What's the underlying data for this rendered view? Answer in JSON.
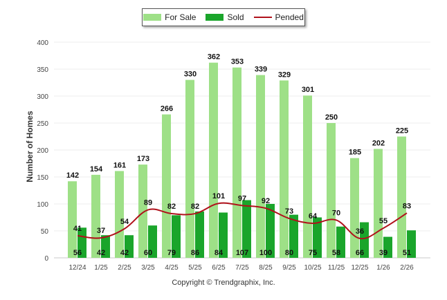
{
  "chart_data": {
    "type": "bar",
    "title": "",
    "xlabel": "",
    "ylabel": "Number of Homes",
    "ylim": [
      0,
      400
    ],
    "yticks": [
      0,
      50,
      100,
      150,
      200,
      250,
      300,
      350,
      400
    ],
    "categories": [
      "12/24",
      "1/25",
      "2/25",
      "3/25",
      "4/25",
      "5/25",
      "6/25",
      "7/25",
      "8/25",
      "9/25",
      "10/25",
      "11/25",
      "12/25",
      "1/26",
      "2/26"
    ],
    "series": [
      {
        "name": "For Sale",
        "kind": "bar",
        "color": "#9ee087",
        "values": [
          142,
          154,
          161,
          173,
          266,
          330,
          362,
          353,
          339,
          329,
          301,
          250,
          185,
          202,
          225
        ]
      },
      {
        "name": "Sold",
        "kind": "bar",
        "color": "#1aa52b",
        "values": [
          56,
          42,
          42,
          60,
          79,
          86,
          84,
          107,
          100,
          80,
          75,
          58,
          66,
          39,
          51
        ]
      },
      {
        "name": "Pended",
        "kind": "line",
        "color": "#b0111b",
        "values": [
          41,
          37,
          54,
          89,
          82,
          82,
          101,
          97,
          92,
          73,
          64,
          70,
          36,
          55,
          83
        ]
      }
    ],
    "legend_position": "top-center",
    "footer": "Copyright © Trendgraphix, Inc."
  }
}
